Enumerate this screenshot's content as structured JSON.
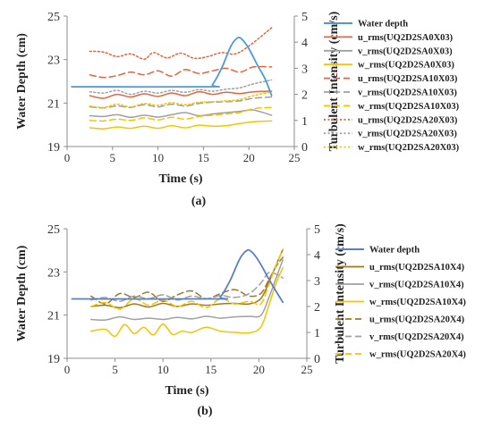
{
  "chart_data": [
    {
      "panel": "(a)",
      "type": "line",
      "xlabel": "Time (s)",
      "ylabel": "Water Depth (cm)",
      "y2label": "Turbulent Intensity (cm/s)",
      "xlim": [
        0,
        25
      ],
      "xticks": [
        0,
        5,
        10,
        15,
        20,
        25
      ],
      "ylim": [
        19,
        25
      ],
      "yticks": [
        19,
        21,
        23,
        25
      ],
      "y2lim": [
        0,
        5
      ],
      "y2ticks": [
        0,
        1,
        2,
        3,
        4,
        5
      ],
      "grid": false,
      "legend": "right",
      "series": [
        {
          "name": "Water depth",
          "axis": "left",
          "color": "#4a9bd4",
          "dash": "solid",
          "width": 1.8,
          "x": [
            0.5,
            15.5,
            16,
            17,
            18,
            18.7,
            19.2,
            20,
            21,
            21.8,
            22.5
          ],
          "y": [
            21.75,
            21.75,
            21.85,
            22.6,
            23.6,
            23.98,
            23.95,
            23.5,
            22.7,
            22.1,
            21.35
          ]
        },
        {
          "name": "u_rms(UQ2D2SA0X03)",
          "axis": "right",
          "color": "#e8623a",
          "dash": "solid",
          "width": 1.5,
          "x": [
            2.5,
            4,
            5.5,
            7,
            8.5,
            10,
            11.5,
            13,
            14.5,
            16,
            17.5,
            19,
            20.5,
            22.5
          ],
          "y": [
            1.95,
            1.85,
            2.0,
            1.9,
            2.02,
            1.92,
            2.05,
            1.95,
            2.1,
            2.0,
            2.08,
            2.03,
            2.1,
            2.12
          ]
        },
        {
          "name": "v_rms(UQ2D2SA0X03)",
          "axis": "right",
          "color": "#a0a0a0",
          "dash": "solid",
          "width": 1.5,
          "x": [
            2.5,
            4,
            5.5,
            7,
            8.5,
            10,
            11.5,
            13,
            14.5,
            16,
            17.5,
            19,
            20.5,
            22.5
          ],
          "y": [
            1.18,
            1.15,
            1.22,
            1.12,
            1.2,
            1.13,
            1.22,
            1.3,
            1.18,
            1.25,
            1.3,
            1.35,
            1.4,
            1.2
          ]
        },
        {
          "name": "w_rms(UQ2D2SA0X03)",
          "axis": "right",
          "color": "#f5c400",
          "dash": "solid",
          "width": 1.5,
          "x": [
            2.5,
            4,
            5.5,
            7,
            8.5,
            10,
            11.5,
            13,
            14.5,
            16,
            17.5,
            19,
            20.5,
            22.5
          ],
          "y": [
            0.72,
            0.68,
            0.75,
            0.7,
            0.78,
            0.7,
            0.8,
            0.72,
            0.82,
            0.78,
            0.8,
            0.88,
            0.95,
            0.98
          ]
        },
        {
          "name": "u_rms(UQ2D2SA10X03)",
          "axis": "right",
          "color": "#e8623a",
          "dash": "dashed",
          "width": 1.5,
          "x": [
            2.5,
            4,
            5.5,
            7,
            8.5,
            10,
            11.5,
            13,
            14.5,
            16,
            17.5,
            19,
            20.5,
            22.5
          ],
          "y": [
            2.75,
            2.65,
            2.72,
            2.85,
            2.75,
            2.9,
            2.7,
            2.95,
            2.8,
            2.9,
            3.0,
            2.85,
            3.05,
            3.05
          ]
        },
        {
          "name": "v_rms(UQ2D2SA10X03)",
          "axis": "right",
          "color": "#a0a0a0",
          "dash": "dashed",
          "width": 1.5,
          "x": [
            2.5,
            4,
            5.5,
            7,
            8.5,
            10,
            11.5,
            13,
            14.5,
            16,
            17.5,
            19,
            20.5,
            22.5
          ],
          "y": [
            1.52,
            1.48,
            1.55,
            1.5,
            1.6,
            1.52,
            1.62,
            1.55,
            1.65,
            1.7,
            1.72,
            1.75,
            1.85,
            1.9
          ]
        },
        {
          "name": "w_rms(UQ2D2SA10X03)",
          "axis": "right",
          "color": "#f5c400",
          "dash": "dashed",
          "width": 1.5,
          "x": [
            2.5,
            4,
            5.5,
            7,
            8.5,
            10,
            11.5,
            13,
            14.5,
            16,
            17.5,
            19,
            20.5,
            22.5
          ],
          "y": [
            1.0,
            0.98,
            1.05,
            1.0,
            1.1,
            1.02,
            1.12,
            1.05,
            1.15,
            1.2,
            1.25,
            1.3,
            1.45,
            1.5
          ]
        },
        {
          "name": "u_rms(UQ2D2SA20X03)",
          "axis": "right",
          "color": "#e8623a",
          "dash": "dotted",
          "width": 1.5,
          "x": [
            2.5,
            4,
            5.5,
            7,
            8.5,
            9.5,
            11,
            12.5,
            14,
            15.5,
            17,
            18.5,
            20,
            22.5
          ],
          "y": [
            3.65,
            3.62,
            3.45,
            3.55,
            3.35,
            3.6,
            3.4,
            3.58,
            3.38,
            3.45,
            3.6,
            3.55,
            3.85,
            4.55
          ]
        },
        {
          "name": "v_rms(UQ2D2SA20X03)",
          "axis": "right",
          "color": "#a0a0a0",
          "dash": "dotted",
          "width": 1.5,
          "x": [
            2.5,
            4,
            5.5,
            7,
            8.5,
            10,
            11.5,
            13,
            14.5,
            16,
            17.5,
            19,
            20.5,
            22.5
          ],
          "y": [
            2.1,
            2.05,
            2.15,
            2.0,
            2.12,
            2.05,
            2.15,
            2.08,
            2.18,
            2.12,
            2.2,
            2.25,
            2.4,
            2.55
          ]
        },
        {
          "name": "w_rms(UQ2D2SA20X03)",
          "axis": "right",
          "color": "#f5c400",
          "dash": "dotted",
          "width": 1.5,
          "x": [
            2.5,
            4,
            5.5,
            7,
            8.5,
            10,
            11.5,
            13,
            14.5,
            16,
            17.5,
            19,
            20.5,
            22.5
          ],
          "y": [
            1.55,
            1.5,
            1.62,
            1.52,
            1.65,
            1.58,
            1.68,
            1.6,
            1.7,
            1.72,
            1.75,
            1.8,
            1.95,
            2.1
          ]
        }
      ]
    },
    {
      "panel": "(b)",
      "type": "line",
      "xlabel": "Time (s)",
      "ylabel": "Water Depth (cm)",
      "y2label": "Turbulent Intensity (cm/s)",
      "xlim": [
        0,
        25
      ],
      "xticks": [
        0,
        5,
        10,
        15,
        20,
        25
      ],
      "ylim": [
        19,
        25
      ],
      "yticks": [
        19,
        21,
        23,
        25
      ],
      "y2lim": [
        0,
        5
      ],
      "y2ticks": [
        0,
        1,
        2,
        3,
        4,
        5
      ],
      "grid": false,
      "legend": "right",
      "series": [
        {
          "name": "Water depth",
          "axis": "left",
          "color": "#5b7fc7",
          "dash": "solid",
          "width": 1.8,
          "x": [
            0.5,
            15.5,
            16,
            17,
            18,
            18.7,
            19.2,
            20,
            21,
            21.8,
            22.5
          ],
          "y": [
            21.75,
            21.75,
            21.85,
            22.6,
            23.6,
            23.98,
            23.95,
            23.5,
            22.7,
            22.1,
            21.6
          ]
        },
        {
          "name": "u_rms(UQ2D2SA10X4)",
          "axis": "right",
          "color": "#a07820",
          "dash": "solid",
          "width": 1.5,
          "x": [
            2.5,
            4,
            5.5,
            7,
            8.5,
            10,
            11.5,
            13,
            14.5,
            16,
            17.5,
            19,
            20.2,
            21,
            21.8,
            22.5
          ],
          "y": [
            2.0,
            2.05,
            1.95,
            2.1,
            1.98,
            2.12,
            2.0,
            2.1,
            2.05,
            2.1,
            2.12,
            2.1,
            2.3,
            2.9,
            3.6,
            4.2
          ]
        },
        {
          "name": "v_rms(UQ2D2SA10X4)",
          "axis": "right",
          "color": "#a0a0a0",
          "dash": "solid",
          "width": 1.5,
          "x": [
            2.5,
            4,
            5.5,
            7,
            8.5,
            10,
            11.5,
            13,
            14.5,
            16,
            17.5,
            19,
            20.2,
            21,
            21.8,
            22.5
          ],
          "y": [
            1.5,
            1.48,
            1.6,
            1.5,
            1.55,
            1.5,
            1.58,
            1.52,
            1.62,
            1.55,
            1.6,
            1.62,
            1.65,
            2.3,
            3.1,
            3.8
          ]
        },
        {
          "name": "w_rms(UQ2D2SA10X4)",
          "axis": "right",
          "color": "#f5c400",
          "dash": "solid",
          "width": 1.5,
          "x": [
            2.5,
            4,
            5,
            6,
            7,
            8,
            9,
            10,
            11,
            12,
            13,
            14.5,
            16,
            17.5,
            19,
            20.2,
            21,
            21.8,
            22.5
          ],
          "y": [
            1.05,
            1.12,
            0.85,
            1.3,
            0.95,
            1.2,
            0.9,
            1.32,
            0.92,
            1.05,
            1.0,
            1.2,
            1.05,
            1.0,
            0.98,
            1.2,
            2.0,
            2.9,
            3.5
          ]
        },
        {
          "name": "u_rms(UQ2D2SA20X4)",
          "axis": "right",
          "color": "#a07820",
          "dash": "dashed",
          "width": 1.5,
          "x": [
            2.5,
            4,
            5.5,
            7,
            8.5,
            10,
            11.5,
            13,
            14.5,
            16,
            17.5,
            19,
            20.2,
            21,
            21.8,
            22.5
          ],
          "y": [
            2.4,
            2.1,
            2.5,
            2.35,
            2.55,
            2.2,
            2.45,
            2.6,
            2.3,
            2.5,
            2.65,
            2.4,
            2.5,
            3.0,
            3.55,
            3.9
          ]
        },
        {
          "name": "v_rms(UQ2D2SA20X4)",
          "axis": "right",
          "color": "#a0a0a0",
          "dash": "dashed",
          "width": 1.5,
          "x": [
            2.5,
            4,
            5.5,
            7,
            8.5,
            10,
            11.5,
            13,
            14.5,
            16,
            17.5,
            19,
            20.2,
            21,
            21.8,
            22.5
          ],
          "y": [
            2.25,
            2.35,
            2.2,
            2.4,
            2.3,
            2.45,
            2.25,
            2.4,
            2.3,
            2.42,
            2.35,
            2.5,
            2.9,
            3.3,
            3.25,
            3.1
          ]
        },
        {
          "name": "w_rms(UQ2D2SA20X4)",
          "axis": "right",
          "color": "#f5c400",
          "dash": "dashed",
          "width": 1.5,
          "x": [
            2.5,
            4,
            5.5,
            7,
            8.5,
            10,
            11.5,
            13,
            14.5,
            16,
            17.5,
            19,
            20.2,
            21,
            21.8,
            22.5
          ],
          "y": [
            2.0,
            2.15,
            1.9,
            2.3,
            2.05,
            2.25,
            2.0,
            2.2,
            1.95,
            2.3,
            2.1,
            2.2,
            2.1,
            2.8,
            3.6,
            4.2
          ]
        }
      ]
    }
  ]
}
